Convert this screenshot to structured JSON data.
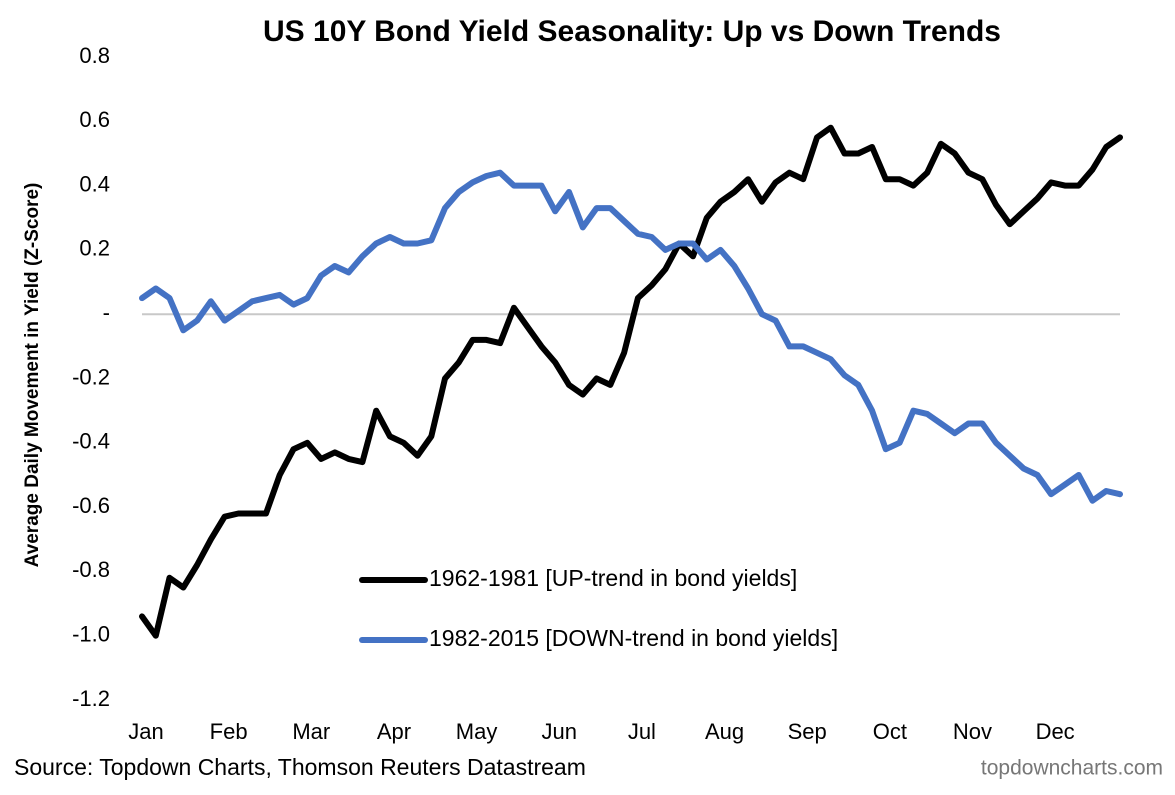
{
  "chart_data": {
    "type": "line",
    "title": "US 10Y Bond Yield Seasonality: Up vs Down Trends",
    "y_label": "Average Daily Movement in Yield (Z-Score)",
    "source": "Source: Topdown Charts, Thomson Reuters Datastream",
    "watermark": "topdowncharts.com",
    "categories": [
      "Jan",
      null,
      null,
      null,
      null,
      null,
      "Feb",
      null,
      null,
      null,
      null,
      null,
      "Mar",
      null,
      null,
      null,
      null,
      null,
      "Apr",
      null,
      null,
      null,
      null,
      null,
      "May",
      null,
      null,
      null,
      null,
      null,
      "Jun",
      null,
      null,
      null,
      null,
      null,
      "Jul",
      null,
      null,
      null,
      null,
      null,
      "Aug",
      null,
      null,
      null,
      null,
      null,
      "Sep",
      null,
      null,
      null,
      null,
      null,
      "Oct",
      null,
      null,
      null,
      null,
      null,
      "Nov",
      null,
      null,
      null,
      null,
      null,
      "Dec",
      null,
      null,
      null,
      null,
      null
    ],
    "series": [
      {
        "name": "1962-1981 [UP-trend in bond yields]",
        "color": "#000000",
        "values": [
          -0.94,
          -1.0,
          -0.82,
          -0.85,
          -0.78,
          -0.7,
          -0.63,
          -0.62,
          -0.62,
          -0.62,
          -0.5,
          -0.42,
          -0.4,
          -0.45,
          -0.43,
          -0.45,
          -0.46,
          -0.3,
          -0.38,
          -0.4,
          -0.44,
          -0.38,
          -0.2,
          -0.15,
          -0.08,
          -0.08,
          -0.09,
          0.02,
          -0.04,
          -0.1,
          -0.15,
          -0.22,
          -0.25,
          -0.2,
          -0.22,
          -0.12,
          0.05,
          0.09,
          0.14,
          0.22,
          0.18,
          0.3,
          0.35,
          0.38,
          0.42,
          0.35,
          0.41,
          0.44,
          0.42,
          0.55,
          0.58,
          0.5,
          0.5,
          0.52,
          0.42,
          0.42,
          0.4,
          0.44,
          0.53,
          0.5,
          0.44,
          0.42,
          0.34,
          0.28,
          0.32,
          0.36,
          0.41,
          0.4,
          0.4,
          0.45,
          0.52,
          0.55
        ]
      },
      {
        "name": "1982-2015 [DOWN-trend in bond yields]",
        "color": "#4472c4",
        "values": [
          0.05,
          0.08,
          0.05,
          -0.05,
          -0.02,
          0.04,
          -0.02,
          0.01,
          0.04,
          0.05,
          0.06,
          0.03,
          0.05,
          0.12,
          0.15,
          0.13,
          0.18,
          0.22,
          0.24,
          0.22,
          0.22,
          0.23,
          0.33,
          0.38,
          0.41,
          0.43,
          0.44,
          0.4,
          0.4,
          0.4,
          0.32,
          0.38,
          0.27,
          0.33,
          0.33,
          0.29,
          0.25,
          0.24,
          0.2,
          0.22,
          0.22,
          0.17,
          0.2,
          0.15,
          0.08,
          0.0,
          -0.02,
          -0.1,
          -0.1,
          -0.12,
          -0.14,
          -0.19,
          -0.22,
          -0.3,
          -0.42,
          -0.4,
          -0.3,
          -0.31,
          -0.34,
          -0.37,
          -0.34,
          -0.34,
          -0.4,
          -0.44,
          -0.48,
          -0.5,
          -0.56,
          -0.53,
          -0.5,
          -0.58,
          -0.55,
          -0.56
        ]
      }
    ],
    "ylim": [
      -1.2,
      0.8
    ],
    "yticks": [
      0.8,
      0.6,
      0.4,
      0.2,
      {
        "value": 0,
        "label": "-"
      },
      -0.2,
      -0.4,
      -0.6,
      -0.8,
      {
        "value": -1,
        "label": "-1.0"
      },
      -1.2
    ],
    "zero_line": true
  }
}
